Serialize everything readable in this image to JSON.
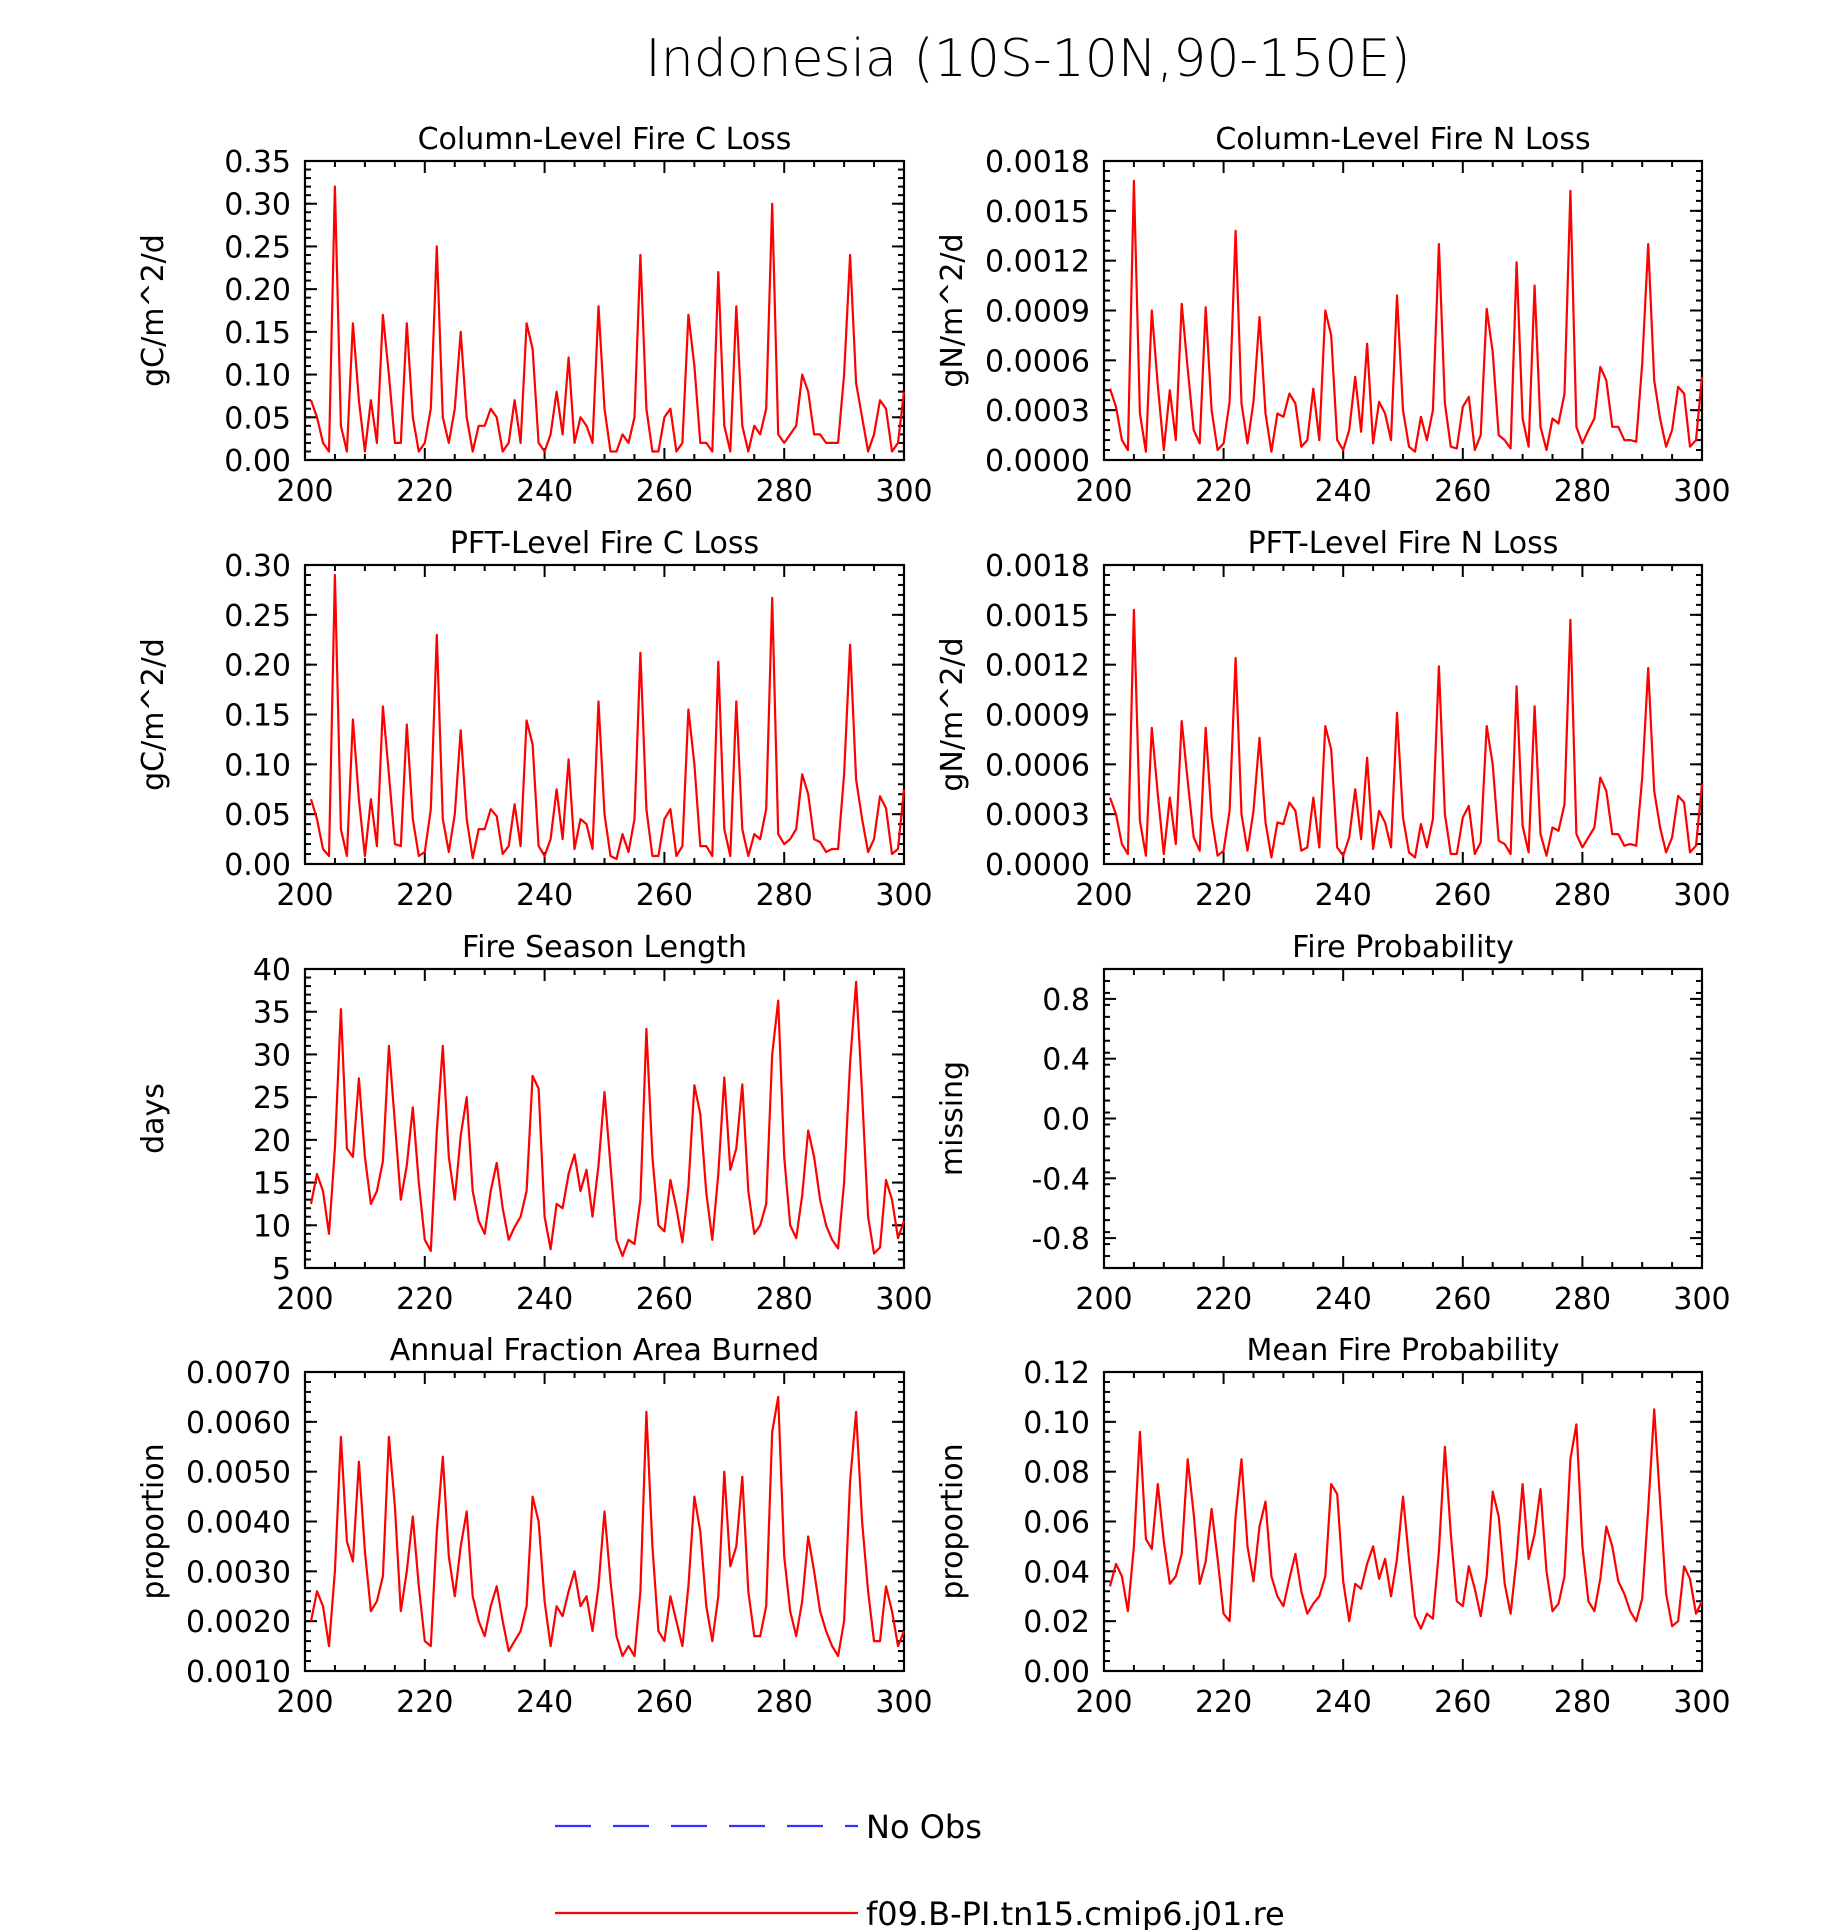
{
  "figure_title": "Indonesia (10S-10N,90-150E)",
  "legend": {
    "entries": [
      {
        "label": "No Obs",
        "color": "#3333ff",
        "dashed": true
      },
      {
        "label": "f09.B-PI.tn15.cmip6.j01.re",
        "color": "#ff0000",
        "dashed": false
      }
    ]
  },
  "chart_data": [
    {
      "type": "line",
      "title": "Column-Level Fire C Loss",
      "ylabel": "gC/m^2/d",
      "xlim": [
        200,
        300
      ],
      "ylim": [
        0,
        0.35
      ],
      "xticks": [
        "200",
        "220",
        "240",
        "260",
        "280",
        "300"
      ],
      "yticks": [
        "0.00",
        "0.05",
        "0.10",
        "0.15",
        "0.20",
        "0.25",
        "0.30",
        "0.35"
      ],
      "x_start": 201,
      "series": [
        {
          "name": "f09.B-PI.tn15.cmip6.j01.re",
          "color": "#ff0000",
          "values": [
            0.07,
            0.05,
            0.02,
            0.01,
            0.32,
            0.04,
            0.01,
            0.16,
            0.07,
            0.01,
            0.07,
            0.02,
            0.17,
            0.1,
            0.02,
            0.02,
            0.16,
            0.05,
            0.01,
            0.02,
            0.06,
            0.25,
            0.05,
            0.02,
            0.06,
            0.15,
            0.05,
            0.01,
            0.04,
            0.04,
            0.06,
            0.05,
            0.01,
            0.02,
            0.07,
            0.02,
            0.16,
            0.13,
            0.02,
            0.01,
            0.03,
            0.08,
            0.03,
            0.12,
            0.02,
            0.05,
            0.04,
            0.02,
            0.18,
            0.06,
            0.01,
            0.01,
            0.03,
            0.02,
            0.05,
            0.24,
            0.06,
            0.01,
            0.01,
            0.05,
            0.06,
            0.01,
            0.02,
            0.17,
            0.11,
            0.02,
            0.02,
            0.01,
            0.22,
            0.04,
            0.01,
            0.18,
            0.04,
            0.01,
            0.04,
            0.03,
            0.06,
            0.3,
            0.03,
            0.02,
            0.03,
            0.04,
            0.1,
            0.08,
            0.03,
            0.03,
            0.02,
            0.02,
            0.02,
            0.1,
            0.24,
            0.09,
            0.05,
            0.01,
            0.03,
            0.07,
            0.06,
            0.01,
            0.02,
            0.08
          ]
        }
      ]
    },
    {
      "type": "line",
      "title": "Column-Level Fire N Loss",
      "ylabel": "gN/m^2/d",
      "xlim": [
        200,
        300
      ],
      "ylim": [
        0,
        0.0018
      ],
      "xticks": [
        "200",
        "220",
        "240",
        "260",
        "280",
        "300"
      ],
      "yticks": [
        "0.0000",
        "0.0003",
        "0.0006",
        "0.0009",
        "0.0012",
        "0.0015",
        "0.0018"
      ],
      "x_start": 201,
      "series": [
        {
          "name": "f09.B-PI.tn15.cmip6.j01.re",
          "color": "#ff0000",
          "values": [
            0.00043,
            0.00032,
            0.00012,
            6e-05,
            0.00168,
            0.00028,
            5e-05,
            0.0009,
            0.00045,
            6e-05,
            0.00042,
            0.00012,
            0.00094,
            0.00055,
            0.00018,
            0.0001,
            0.00092,
            0.0003,
            6e-05,
            0.0001,
            0.00035,
            0.00138,
            0.00034,
            0.0001,
            0.00035,
            0.00086,
            0.00028,
            5e-05,
            0.00028,
            0.00026,
            0.0004,
            0.00034,
            8e-05,
            0.00012,
            0.00043,
            0.00012,
            0.0009,
            0.00075,
            0.00012,
            6e-05,
            0.00018,
            0.0005,
            0.00017,
            0.0007,
            0.0001,
            0.00035,
            0.00028,
            0.00012,
            0.00099,
            0.0003,
            8e-05,
            5e-05,
            0.00026,
            0.00012,
            0.0003,
            0.0013,
            0.00034,
            8e-05,
            7e-05,
            0.00032,
            0.00038,
            6e-05,
            0.00015,
            0.00091,
            0.00065,
            0.00015,
            0.00012,
            7e-05,
            0.00119,
            0.00025,
            8e-05,
            0.00105,
            0.0002,
            6e-05,
            0.00025,
            0.00022,
            0.0004,
            0.00162,
            0.0002,
            0.0001,
            0.00018,
            0.00025,
            0.00056,
            0.00048,
            0.0002,
            0.0002,
            0.00012,
            0.00012,
            0.00011,
            0.00058,
            0.0013,
            0.00048,
            0.00025,
            8e-05,
            0.00018,
            0.00044,
            0.0004,
            8e-05,
            0.00012,
            0.0005
          ]
        }
      ]
    },
    {
      "type": "line",
      "title": "PFT-Level Fire C Loss",
      "ylabel": "gC/m^2/d",
      "xlim": [
        200,
        300
      ],
      "ylim": [
        0,
        0.3
      ],
      "xticks": [
        "200",
        "220",
        "240",
        "260",
        "280",
        "300"
      ],
      "yticks": [
        "0.00",
        "0.05",
        "0.10",
        "0.15",
        "0.20",
        "0.25",
        "0.30"
      ],
      "x_start": 201,
      "series": [
        {
          "name": "f09.B-PI.tn15.cmip6.j01.re",
          "color": "#ff0000",
          "values": [
            0.065,
            0.045,
            0.015,
            0.008,
            0.29,
            0.035,
            0.008,
            0.145,
            0.065,
            0.008,
            0.065,
            0.018,
            0.158,
            0.09,
            0.02,
            0.018,
            0.14,
            0.045,
            0.008,
            0.012,
            0.055,
            0.23,
            0.045,
            0.012,
            0.05,
            0.134,
            0.045,
            0.006,
            0.035,
            0.035,
            0.055,
            0.048,
            0.01,
            0.018,
            0.06,
            0.018,
            0.144,
            0.12,
            0.018,
            0.008,
            0.025,
            0.075,
            0.025,
            0.105,
            0.015,
            0.045,
            0.04,
            0.015,
            0.163,
            0.05,
            0.008,
            0.005,
            0.03,
            0.012,
            0.045,
            0.212,
            0.055,
            0.008,
            0.008,
            0.045,
            0.055,
            0.008,
            0.018,
            0.155,
            0.1,
            0.018,
            0.018,
            0.008,
            0.203,
            0.035,
            0.008,
            0.163,
            0.035,
            0.008,
            0.03,
            0.025,
            0.055,
            0.267,
            0.03,
            0.02,
            0.025,
            0.035,
            0.09,
            0.07,
            0.025,
            0.022,
            0.012,
            0.015,
            0.015,
            0.09,
            0.22,
            0.085,
            0.045,
            0.012,
            0.025,
            0.068,
            0.056,
            0.01,
            0.015,
            0.075
          ]
        }
      ]
    },
    {
      "type": "line",
      "title": "PFT-Level Fire N Loss",
      "ylabel": "gN/m^2/d",
      "xlim": [
        200,
        300
      ],
      "ylim": [
        0,
        0.0018
      ],
      "xticks": [
        "200",
        "220",
        "240",
        "260",
        "280",
        "300"
      ],
      "yticks": [
        "0.0000",
        "0.0003",
        "0.0006",
        "0.0009",
        "0.0012",
        "0.0015",
        "0.0018"
      ],
      "x_start": 201,
      "series": [
        {
          "name": "f09.B-PI.tn15.cmip6.j01.re",
          "color": "#ff0000",
          "values": [
            0.0004,
            0.0003,
            0.00012,
            6e-05,
            0.00153,
            0.00026,
            5e-05,
            0.00082,
            0.00042,
            6e-05,
            0.0004,
            0.00012,
            0.00086,
            0.0005,
            0.00016,
            8e-05,
            0.00082,
            0.00028,
            5e-05,
            8e-05,
            0.00032,
            0.00124,
            0.0003,
            8e-05,
            0.00032,
            0.00076,
            0.00025,
            4e-05,
            0.00025,
            0.00024,
            0.00037,
            0.00032,
            8e-05,
            0.0001,
            0.0004,
            0.0001,
            0.00083,
            0.00069,
            0.0001,
            5e-05,
            0.00016,
            0.00045,
            0.00015,
            0.00064,
            9e-05,
            0.00032,
            0.00025,
            0.0001,
            0.00091,
            0.00028,
            7e-05,
            4e-05,
            0.00024,
            0.0001,
            0.00027,
            0.00119,
            0.0003,
            6e-05,
            6e-05,
            0.00028,
            0.00035,
            6e-05,
            0.00013,
            0.00083,
            0.0006,
            0.00014,
            0.00012,
            6e-05,
            0.00107,
            0.00023,
            7e-05,
            0.00095,
            0.00018,
            5e-05,
            0.00022,
            0.0002,
            0.00036,
            0.00147,
            0.00018,
            0.0001,
            0.00016,
            0.00022,
            0.00052,
            0.00044,
            0.00018,
            0.00018,
            0.00011,
            0.00012,
            0.00011,
            0.00052,
            0.00118,
            0.00044,
            0.00022,
            7e-05,
            0.00016,
            0.00041,
            0.00037,
            7e-05,
            0.00011,
            0.00048
          ]
        }
      ]
    },
    {
      "type": "line",
      "title": "Fire Season Length",
      "ylabel": "days",
      "xlim": [
        200,
        300
      ],
      "ylim": [
        5,
        40
      ],
      "xticks": [
        "200",
        "220",
        "240",
        "260",
        "280",
        "300"
      ],
      "yticks": [
        "5",
        "10",
        "15",
        "20",
        "25",
        "30",
        "35",
        "40"
      ],
      "x_start": 201,
      "series": [
        {
          "name": "f09.B-PI.tn15.cmip6.j01.re",
          "color": "#ff0000",
          "values": [
            12.5,
            16,
            14,
            9,
            19,
            35.3,
            19,
            18,
            27.2,
            18,
            12.5,
            14,
            17.5,
            31,
            22,
            13,
            17,
            23.8,
            15,
            8.3,
            7,
            21,
            31,
            18,
            13,
            20.5,
            25,
            14,
            10.5,
            9,
            14,
            17.3,
            12,
            8.3,
            9.8,
            11,
            14,
            27.5,
            26,
            11,
            7.2,
            12.5,
            12,
            16,
            18.3,
            14,
            16.5,
            11,
            17,
            25.6,
            17,
            8.3,
            6.4,
            8.3,
            7.8,
            13,
            33,
            18,
            10,
            9.3,
            15.3,
            12,
            8,
            14.5,
            26.4,
            23,
            13.8,
            8.3,
            16,
            27.3,
            16.5,
            19,
            26.5,
            14,
            9,
            10,
            12.5,
            30,
            36.3,
            18,
            10,
            8.5,
            13.5,
            21.1,
            18,
            13,
            10,
            8.3,
            7.3,
            15,
            29,
            38.5,
            25.4,
            11,
            6.7,
            7.4,
            15.3,
            13,
            8.5,
            10.5
          ]
        }
      ]
    },
    {
      "type": "line",
      "title": "Fire Probability",
      "ylabel": "missing",
      "xlim": [
        200,
        300
      ],
      "ylim": [
        -1.0,
        1.0
      ],
      "xticks": [
        "200",
        "220",
        "240",
        "260",
        "280",
        "300"
      ],
      "yticks": [
        "-0.8",
        "-0.4",
        "0.0",
        "0.4",
        "0.8"
      ],
      "ytick_values": [
        -0.8,
        -0.4,
        0.0,
        0.4,
        0.8
      ],
      "x_start": 201,
      "series": []
    },
    {
      "type": "line",
      "title": "Annual Fraction Area Burned",
      "ylabel": "proportion",
      "xlim": [
        200,
        300
      ],
      "ylim": [
        0.001,
        0.007
      ],
      "xticks": [
        "200",
        "220",
        "240",
        "260",
        "280",
        "300"
      ],
      "yticks": [
        "0.0010",
        "0.0020",
        "0.0030",
        "0.0040",
        "0.0050",
        "0.0060",
        "0.0070"
      ],
      "x_start": 201,
      "series": [
        {
          "name": "f09.B-PI.tn15.cmip6.j01.re",
          "color": "#ff0000",
          "values": [
            0.002,
            0.0026,
            0.0023,
            0.0015,
            0.003,
            0.0057,
            0.0036,
            0.0032,
            0.0052,
            0.0034,
            0.0022,
            0.0024,
            0.0029,
            0.0057,
            0.0043,
            0.0022,
            0.003,
            0.0041,
            0.0027,
            0.0016,
            0.0015,
            0.0038,
            0.0053,
            0.0033,
            0.0025,
            0.0035,
            0.0042,
            0.0025,
            0.002,
            0.0017,
            0.0023,
            0.0027,
            0.002,
            0.0014,
            0.0016,
            0.0018,
            0.0023,
            0.0045,
            0.004,
            0.0024,
            0.0015,
            0.0023,
            0.0021,
            0.0026,
            0.003,
            0.0023,
            0.0025,
            0.0018,
            0.0027,
            0.0042,
            0.0028,
            0.0017,
            0.0013,
            0.0015,
            0.0013,
            0.0026,
            0.0062,
            0.0035,
            0.0018,
            0.0016,
            0.0025,
            0.002,
            0.0015,
            0.0027,
            0.0045,
            0.0038,
            0.0023,
            0.0016,
            0.0025,
            0.005,
            0.0031,
            0.0035,
            0.0049,
            0.0026,
            0.0017,
            0.0017,
            0.0023,
            0.0058,
            0.0065,
            0.0033,
            0.0022,
            0.0017,
            0.0024,
            0.0037,
            0.003,
            0.0022,
            0.0018,
            0.0015,
            0.0013,
            0.002,
            0.0048,
            0.0062,
            0.004,
            0.0026,
            0.0016,
            0.0016,
            0.0027,
            0.0022,
            0.0015,
            0.0018
          ]
        }
      ]
    },
    {
      "type": "line",
      "title": "Mean Fire Probability",
      "ylabel": "proportion",
      "xlim": [
        200,
        300
      ],
      "ylim": [
        0,
        0.12
      ],
      "xticks": [
        "200",
        "220",
        "240",
        "260",
        "280",
        "300"
      ],
      "yticks": [
        "0.00",
        "0.02",
        "0.04",
        "0.06",
        "0.08",
        "0.10",
        "0.12"
      ],
      "x_start": 201,
      "series": [
        {
          "name": "f09.B-PI.tn15.cmip6.j01.re",
          "color": "#ff0000",
          "values": [
            0.034,
            0.043,
            0.038,
            0.024,
            0.05,
            0.096,
            0.053,
            0.049,
            0.075,
            0.052,
            0.035,
            0.038,
            0.047,
            0.085,
            0.063,
            0.035,
            0.044,
            0.065,
            0.045,
            0.023,
            0.02,
            0.062,
            0.085,
            0.05,
            0.036,
            0.058,
            0.068,
            0.038,
            0.03,
            0.026,
            0.037,
            0.047,
            0.032,
            0.023,
            0.027,
            0.03,
            0.038,
            0.075,
            0.071,
            0.036,
            0.02,
            0.035,
            0.033,
            0.043,
            0.05,
            0.037,
            0.045,
            0.03,
            0.045,
            0.07,
            0.045,
            0.022,
            0.017,
            0.023,
            0.021,
            0.048,
            0.09,
            0.055,
            0.028,
            0.026,
            0.042,
            0.033,
            0.022,
            0.038,
            0.072,
            0.062,
            0.035,
            0.023,
            0.045,
            0.075,
            0.045,
            0.055,
            0.073,
            0.04,
            0.024,
            0.027,
            0.038,
            0.085,
            0.099,
            0.05,
            0.028,
            0.024,
            0.037,
            0.058,
            0.05,
            0.036,
            0.031,
            0.024,
            0.02,
            0.029,
            0.065,
            0.105,
            0.068,
            0.031,
            0.018,
            0.02,
            0.042,
            0.037,
            0.023,
            0.028
          ]
        }
      ]
    }
  ]
}
